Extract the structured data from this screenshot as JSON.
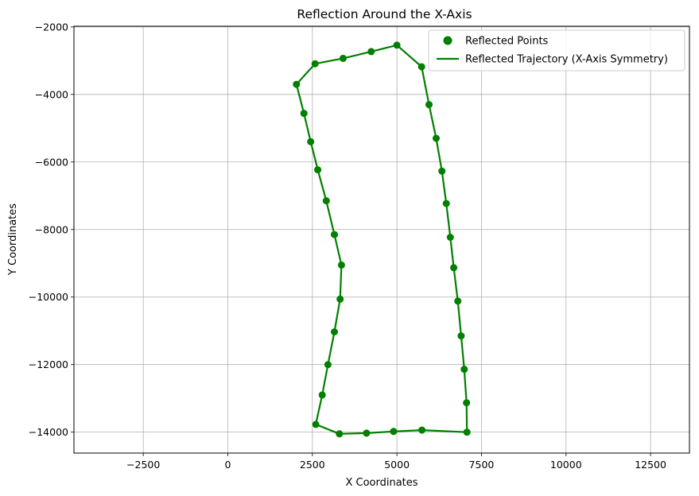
{
  "chart_data": {
    "type": "scatter",
    "title": "Reflection Around the X-Axis",
    "xlabel": "X Coordinates",
    "ylabel": "Y Coordinates",
    "xlim": [
      -4550,
      13650
    ],
    "ylim": [
      -14620,
      -1980
    ],
    "xticks": [
      -2500,
      0,
      2500,
      5000,
      7500,
      10000,
      12500
    ],
    "xtick_labels": [
      "−2500",
      "0",
      "2500",
      "5000",
      "7500",
      "10000",
      "12500"
    ],
    "yticks": [
      -2000,
      -4000,
      -6000,
      -8000,
      -10000,
      -12000,
      -14000
    ],
    "ytick_labels": [
      "−2000",
      "−4000",
      "−6000",
      "−8000",
      "−10000",
      "−12000",
      "−14000"
    ],
    "grid": true,
    "legend_position": "top-right",
    "color": "#008000",
    "series": [
      {
        "name": "Reflected Points",
        "kind": "scatter",
        "x": [
          2030,
          2250,
          2450,
          2660,
          2910,
          3150,
          3360,
          3320,
          3150,
          2960,
          2790,
          2600,
          3300,
          4100,
          4900,
          5740,
          7070,
          7060,
          6990,
          6900,
          6800,
          6680,
          6580,
          6460,
          6330,
          6160,
          5950,
          5730,
          5000,
          4240,
          3410,
          2580
        ],
        "y": [
          -3700,
          -4560,
          -5400,
          -6230,
          -7150,
          -8150,
          -9050,
          -10060,
          -11030,
          -12000,
          -12900,
          -13770,
          -14050,
          -14030,
          -13980,
          -13940,
          -14000,
          -13130,
          -12140,
          -11150,
          -10120,
          -9130,
          -8230,
          -7230,
          -6270,
          -5300,
          -4300,
          -3180,
          -2540,
          -2730,
          -2930,
          -3090
        ]
      },
      {
        "name": "Reflected Trajectory (X-Axis Symmetry)",
        "kind": "line",
        "x": [
          2030,
          2250,
          2450,
          2660,
          2910,
          3150,
          3360,
          3320,
          3150,
          2960,
          2790,
          2600,
          3300,
          4100,
          4900,
          5740,
          7070,
          7060,
          6990,
          6900,
          6800,
          6680,
          6580,
          6460,
          6330,
          6160,
          5950,
          5730,
          5000,
          4240,
          3410,
          2580,
          2030
        ],
        "y": [
          -3700,
          -4560,
          -5400,
          -6230,
          -7150,
          -8150,
          -9050,
          -10060,
          -11030,
          -12000,
          -12900,
          -13770,
          -14050,
          -14030,
          -13980,
          -13940,
          -14000,
          -13130,
          -12140,
          -11150,
          -10120,
          -9130,
          -8230,
          -7230,
          -6270,
          -5300,
          -4300,
          -3180,
          -2540,
          -2730,
          -2930,
          -3090,
          -3700
        ]
      }
    ]
  }
}
